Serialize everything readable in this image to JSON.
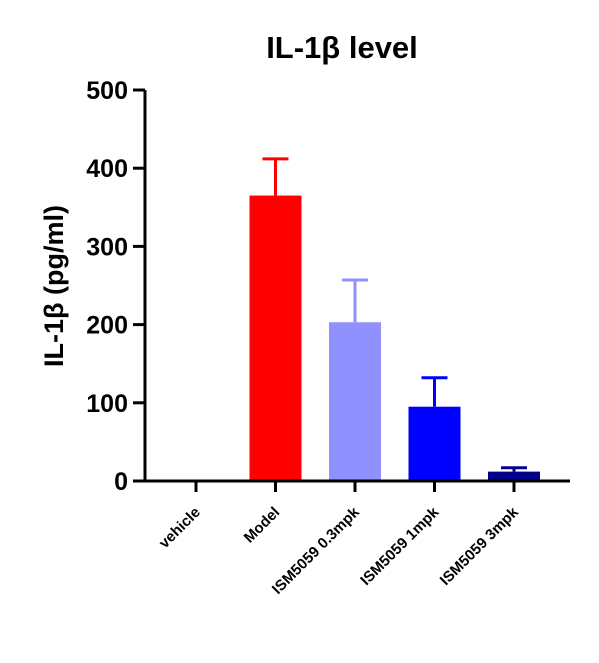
{
  "chart_data": {
    "type": "bar",
    "title": "IL-1β level",
    "xlabel": "",
    "ylabel": "IL-1β (pg/ml)",
    "ylim": [
      0,
      500
    ],
    "yticks": [
      0,
      100,
      200,
      300,
      400,
      500
    ],
    "grid": false,
    "legend": "none",
    "categories": [
      "vehicle",
      "Model",
      "ISM5059 0.3mpk",
      "ISM5059 1mpk",
      "ISM5059 3mpk"
    ],
    "values": [
      0,
      365,
      203,
      95,
      12
    ],
    "errors": [
      0,
      47,
      54,
      37,
      5
    ],
    "colors": [
      "#000000",
      "#ff0000",
      "#9090ff",
      "#0000ff",
      "#00008b"
    ]
  }
}
